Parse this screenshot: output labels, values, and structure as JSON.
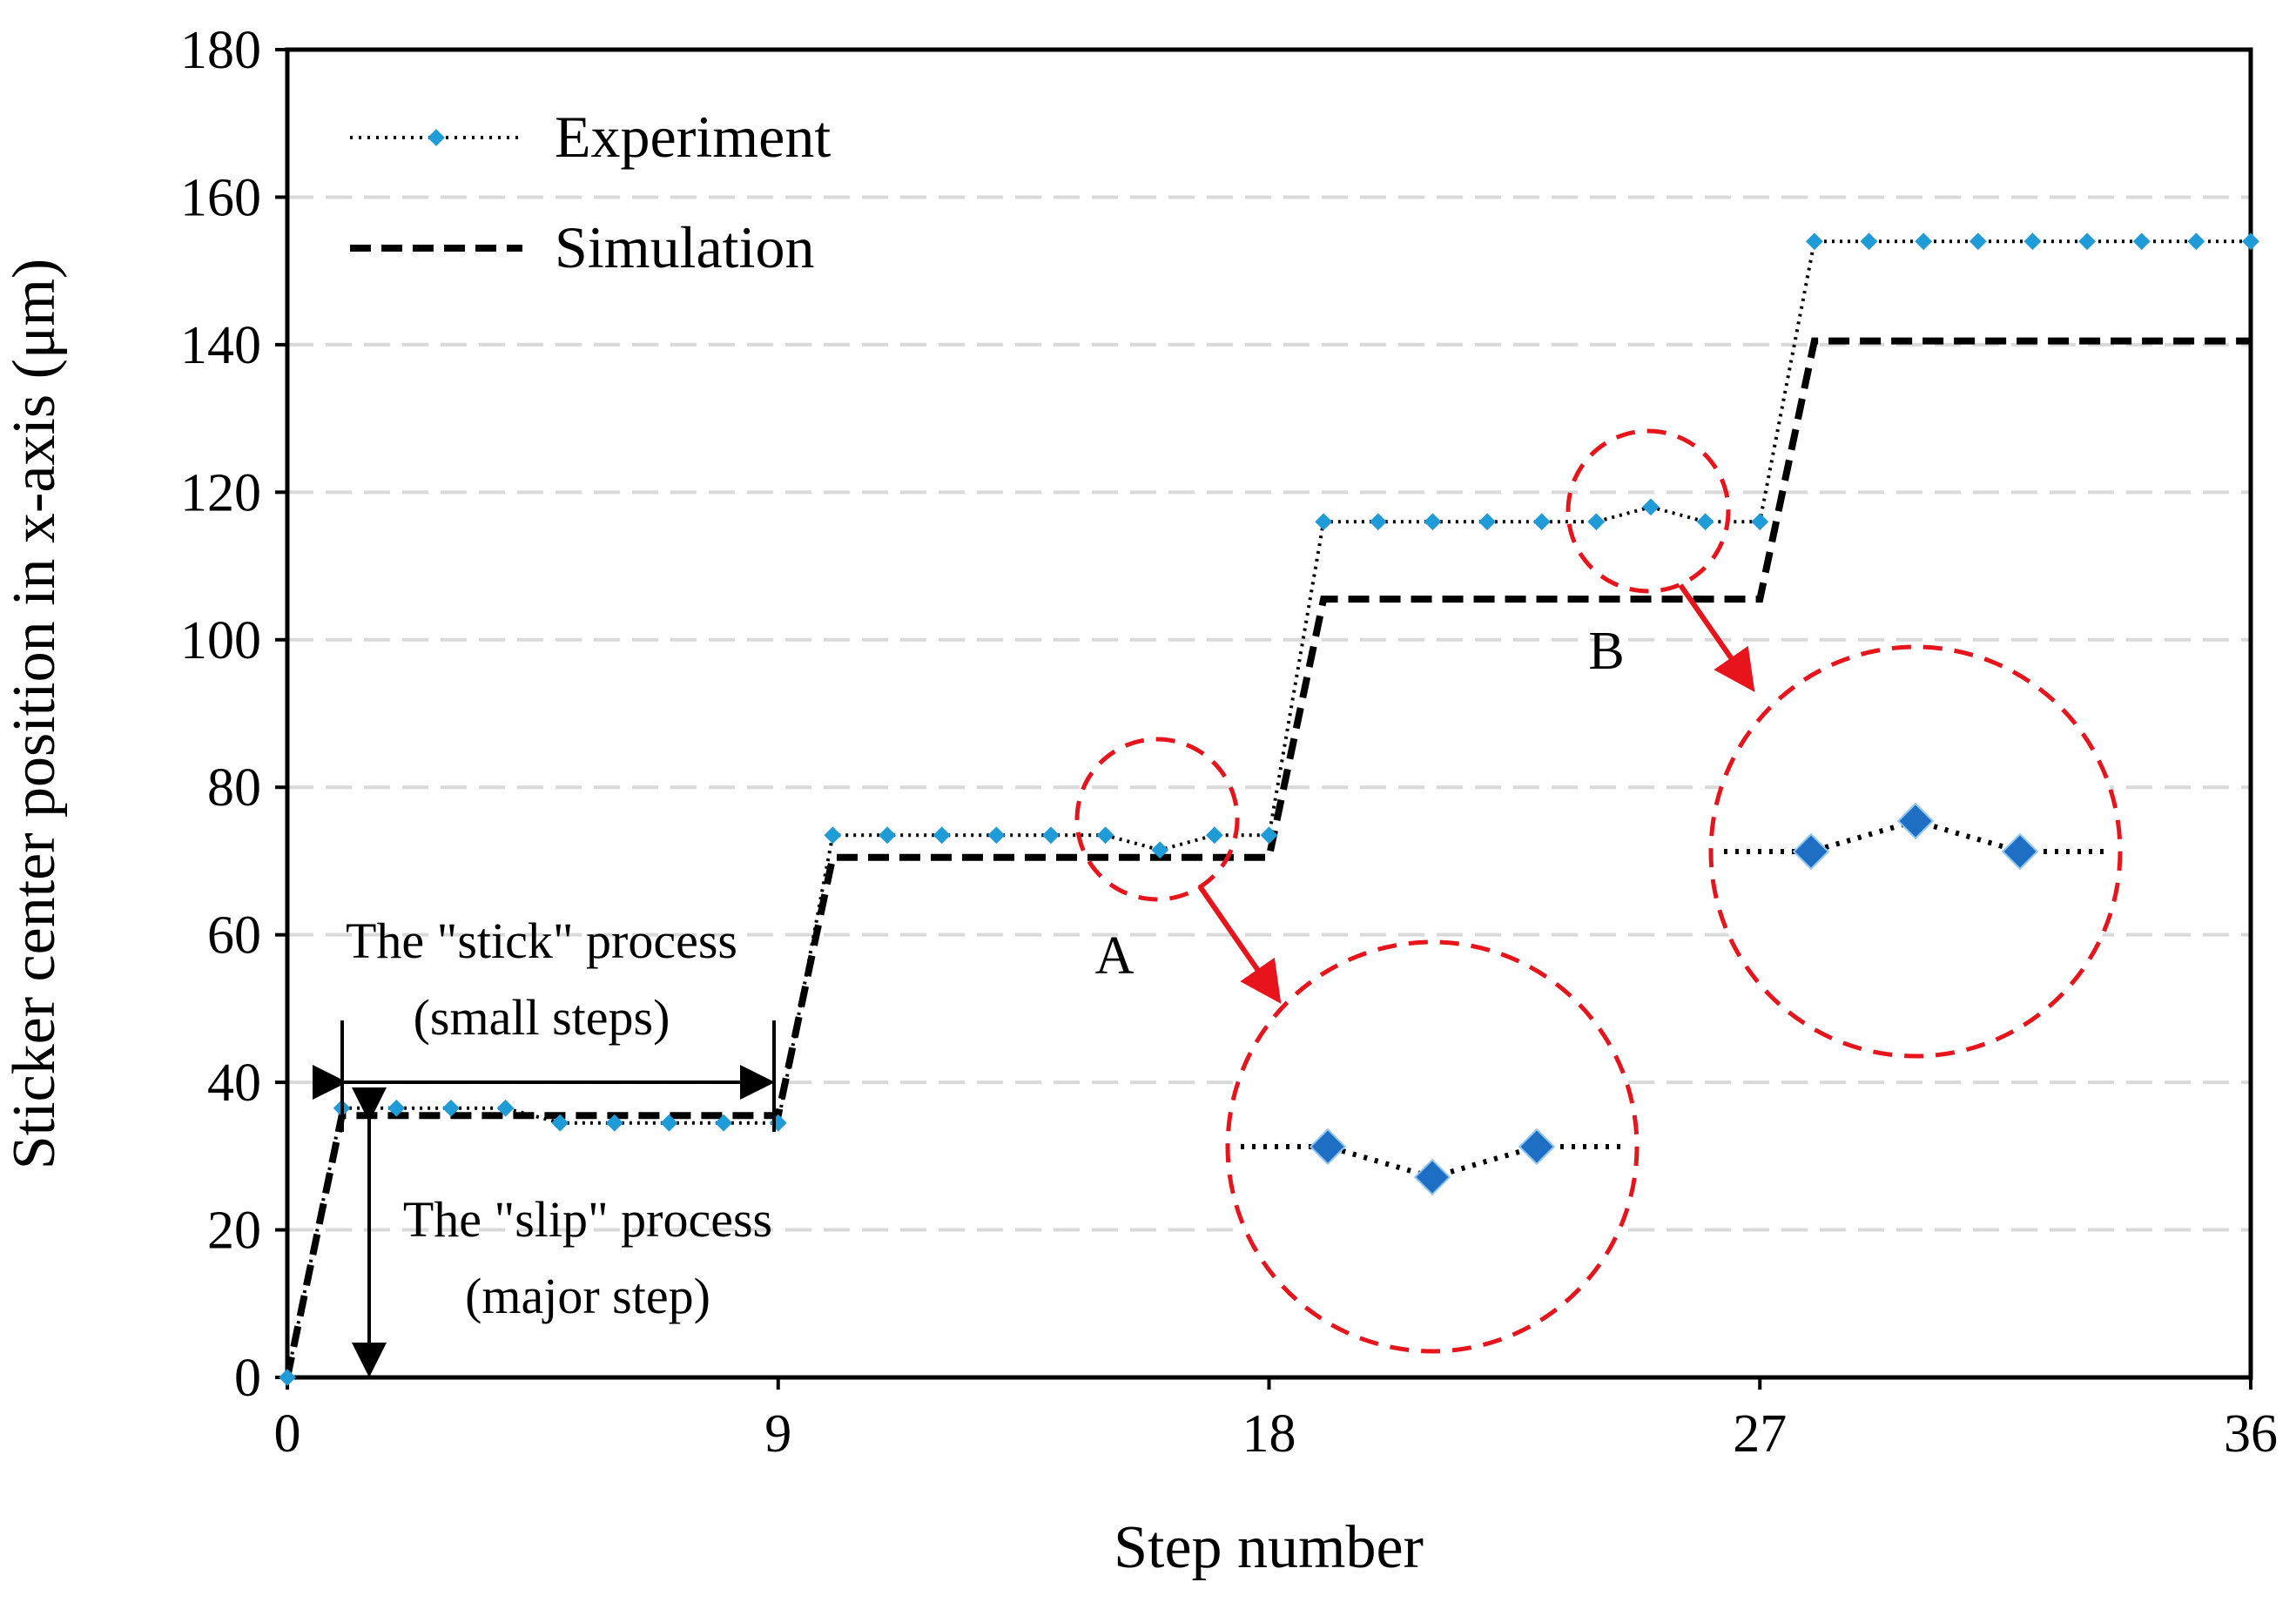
{
  "chart_data": {
    "type": "line",
    "title": "",
    "xlabel": "Step number",
    "ylabel": "Sticker center position in x-axis (μm)",
    "xlim": [
      0,
      36
    ],
    "ylim": [
      0,
      180
    ],
    "xticks": [
      0,
      9,
      18,
      27,
      36
    ],
    "yticks": [
      0,
      20,
      40,
      60,
      80,
      100,
      120,
      140,
      160,
      180
    ],
    "grid": "horizontal dashed",
    "legend_position": "top-left",
    "series": [
      {
        "name": "Experiment",
        "style": "dotted with diamond markers",
        "color": "#1f9bd7",
        "line_color": "#000000",
        "x": [
          0,
          1,
          2,
          3,
          4,
          5,
          6,
          7,
          8,
          9,
          10,
          11,
          12,
          13,
          14,
          15,
          16,
          17,
          18,
          19,
          20,
          21,
          22,
          23,
          24,
          25,
          26,
          27,
          28,
          29,
          30,
          31,
          32,
          33,
          34,
          35,
          36
        ],
        "y": [
          0,
          36.5,
          36.5,
          36.5,
          36.5,
          34.5,
          34.5,
          34.5,
          34.5,
          34.5,
          73.5,
          73.5,
          73.5,
          73.5,
          73.5,
          73.5,
          71.5,
          73.5,
          73.5,
          116,
          116,
          116,
          116,
          116,
          116,
          118,
          116,
          116,
          154,
          154,
          154,
          154,
          154,
          154,
          154,
          154,
          154
        ]
      },
      {
        "name": "Simulation",
        "style": "dashed",
        "color": "#000000",
        "x": [
          0,
          1,
          9,
          10,
          18,
          19,
          27,
          28,
          36
        ],
        "y": [
          0,
          35.5,
          35.5,
          70.5,
          70.5,
          105.5,
          105.5,
          140.5,
          140.5
        ]
      }
    ],
    "annotations": {
      "stick_line1": "The \"stick\" process",
      "stick_line2": "(small steps)",
      "slip_line1": "The \"slip\" process",
      "slip_line2": "(major step)",
      "label_a": "A",
      "label_b": "B"
    },
    "zoom_insets": [
      {
        "label": "A",
        "source_x": [
          15,
          17
        ],
        "values": [
          73.5,
          71.5,
          73.5
        ]
      },
      {
        "label": "B",
        "source_x": [
          24,
          26
        ],
        "values": [
          116,
          118,
          116
        ]
      }
    ],
    "colors": {
      "marker": "#1f9bd7",
      "inset_marker": "#1e6fc4",
      "highlight": "#e8141b",
      "grid": "#d9d9d9"
    }
  }
}
